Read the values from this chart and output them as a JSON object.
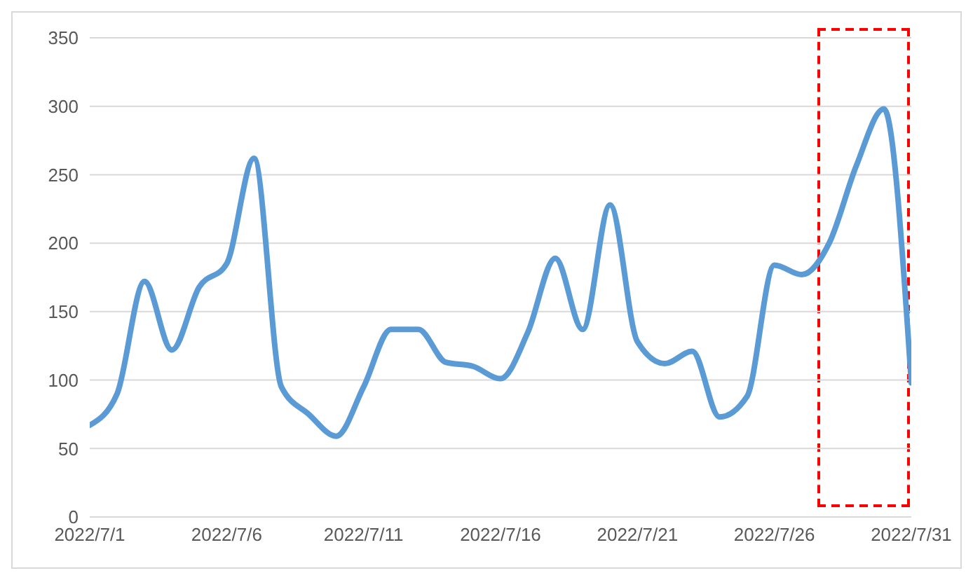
{
  "chart_data": {
    "type": "line",
    "x": [
      "2022-07-01",
      "2022-07-02",
      "2022-07-03",
      "2022-07-04",
      "2022-07-05",
      "2022-07-06",
      "2022-07-07",
      "2022-07-08",
      "2022-07-09",
      "2022-07-10",
      "2022-07-11",
      "2022-07-12",
      "2022-07-13",
      "2022-07-14",
      "2022-07-15",
      "2022-07-16",
      "2022-07-17",
      "2022-07-18",
      "2022-07-19",
      "2022-07-20",
      "2022-07-21",
      "2022-07-22",
      "2022-07-23",
      "2022-07-24",
      "2022-07-25",
      "2022-07-26",
      "2022-07-27",
      "2022-07-28",
      "2022-07-29",
      "2022-07-30",
      "2022-07-31"
    ],
    "series": [
      {
        "color": "#5b9bd5",
        "values": [
          67,
          90,
          172,
          122,
          168,
          185,
          262,
          95,
          75,
          59,
          95,
          137,
          137,
          113,
          110,
          101,
          135,
          189,
          137,
          228,
          128,
          112,
          121,
          73,
          88,
          184,
          177,
          200,
          257,
          298,
          98
        ]
      }
    ],
    "xlim": [
      "2022-07-01",
      "2022-07-31"
    ],
    "xticks": [
      {
        "value": "2022-07-01",
        "label": "2022/7/1"
      },
      {
        "value": "2022-07-06",
        "label": "2022/7/6"
      },
      {
        "value": "2022-07-11",
        "label": "2022/7/11"
      },
      {
        "value": "2022-07-16",
        "label": "2022/7/16"
      },
      {
        "value": "2022-07-21",
        "label": "2022/7/21"
      },
      {
        "value": "2022-07-26",
        "label": "2022/7/26"
      },
      {
        "value": "2022-07-31",
        "label": "2022/7/31"
      }
    ],
    "ylim": [
      0,
      350
    ],
    "yticks": [
      0,
      50,
      100,
      150,
      200,
      250,
      300,
      350
    ],
    "grid": "y",
    "marker": "none",
    "line_style": "solid",
    "legend": false
  }
}
